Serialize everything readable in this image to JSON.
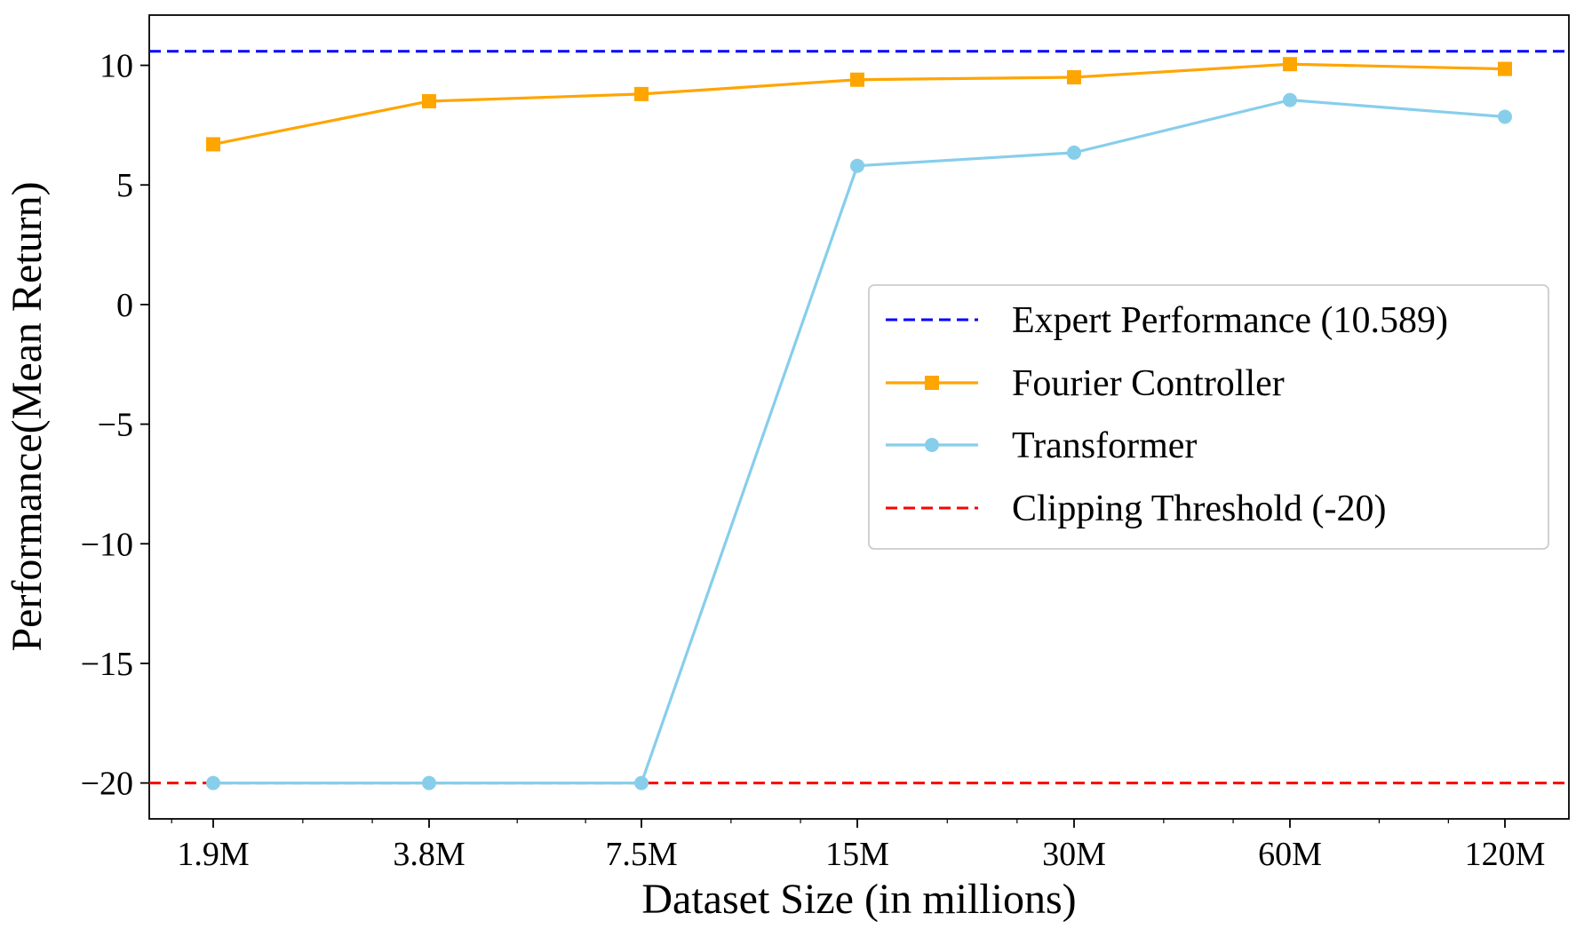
{
  "chart_data": {
    "type": "line",
    "title": "",
    "xlabel": "Dataset Size (in millions)",
    "ylabel": "Performance(Mean Return)",
    "x_scale": "log2",
    "categories": [
      "1.9M",
      "3.8M",
      "7.5M",
      "15M",
      "30M",
      "60M",
      "120M"
    ],
    "x": [
      1.9,
      3.8,
      7.5,
      15,
      30,
      60,
      120
    ],
    "ylim": [
      -21.5,
      12.1
    ],
    "yticks": [
      10,
      5,
      0,
      -5,
      -10,
      -15,
      -20
    ],
    "ytick_labels": [
      "10",
      "5",
      "0",
      "−5",
      "−10",
      "−15",
      "−20"
    ],
    "grid": false,
    "legend_position": "center-right",
    "series": [
      {
        "name": "Fourier Controller",
        "color": "#FFA500",
        "marker": "square",
        "values": [
          6.7,
          8.5,
          8.8,
          9.4,
          9.5,
          10.05,
          9.85
        ]
      },
      {
        "name": "Transformer",
        "color": "#87CEEB",
        "marker": "circle",
        "values": [
          -20,
          -20,
          -20,
          5.8,
          6.35,
          8.55,
          7.85
        ]
      }
    ],
    "reference_lines": [
      {
        "name": "Expert Performance (10.589)",
        "value": 10.589,
        "color": "#0000FF",
        "style": "dashed"
      },
      {
        "name": "Clipping Threshold (-20)",
        "value": -20,
        "color": "#FF0000",
        "style": "dashed"
      }
    ],
    "legend_order": [
      {
        "kind": "ref",
        "index": 0
      },
      {
        "kind": "series",
        "index": 0
      },
      {
        "kind": "series",
        "index": 1
      },
      {
        "kind": "ref",
        "index": 1
      }
    ]
  }
}
